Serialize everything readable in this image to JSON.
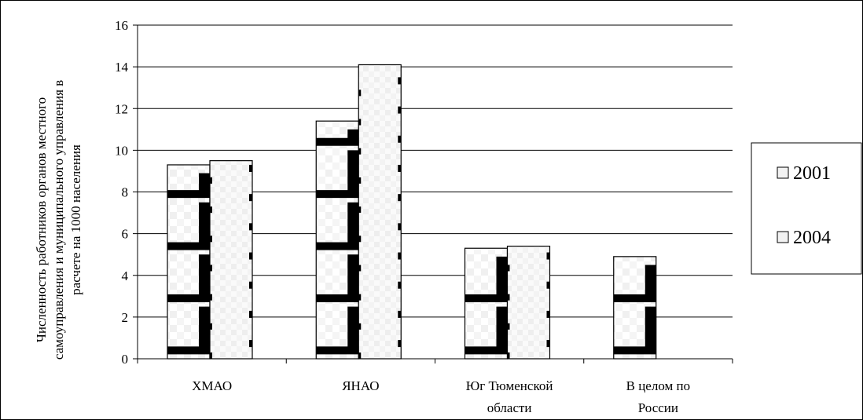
{
  "chart_data": {
    "type": "bar",
    "title": "",
    "xlabel": "",
    "ylabel_lines": [
      "Численность работников органов местного",
      "самоуправления и муниципального управления в",
      "расчете на 1000 населения"
    ],
    "categories": [
      [
        "ХМАО"
      ],
      [
        "ЯНАО"
      ],
      [
        "Юг Тюменской",
        "области"
      ],
      [
        "В целом по",
        "России"
      ]
    ],
    "series": [
      {
        "name": "2001",
        "values": [
          9.3,
          11.4,
          5.3,
          4.9
        ]
      },
      {
        "name": "2004",
        "values": [
          9.5,
          14.1,
          5.4,
          null
        ]
      }
    ],
    "ylim": [
      0,
      16
    ],
    "yticks": [
      "0",
      "2",
      "4",
      "6",
      "8",
      "10",
      "12",
      "14",
      "16"
    ],
    "grid": true,
    "legend_position": "right"
  }
}
